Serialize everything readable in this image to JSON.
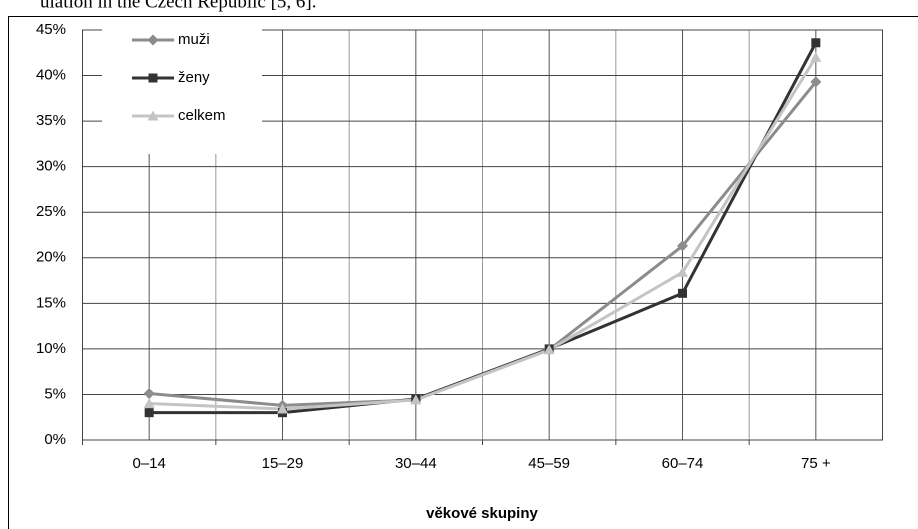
{
  "chart_data": {
    "type": "line",
    "caption": "ulation in the Czech Republic [5, 6].",
    "xlabel": "věkové skupiny",
    "categories": [
      "0–14",
      "15–29",
      "30–44",
      "45–59",
      "60–74",
      "75 +"
    ],
    "series": [
      {
        "name": "muži",
        "color": "#8c8c8c",
        "marker": "diamond",
        "values": [
          5.1,
          3.8,
          4.4,
          9.9,
          21.3,
          39.3
        ]
      },
      {
        "name": "ženy",
        "color": "#333333",
        "marker": "square",
        "values": [
          3.0,
          3.0,
          4.5,
          10.0,
          16.1,
          43.6
        ]
      },
      {
        "name": "celkem",
        "color": "#c4c4c4",
        "marker": "triangle",
        "values": [
          4.0,
          3.4,
          4.4,
          9.9,
          18.4,
          42.0
        ]
      }
    ],
    "ylim": [
      0,
      45
    ],
    "yticks": [
      {
        "value": 0,
        "label": "0%"
      },
      {
        "value": 5,
        "label": "5%"
      },
      {
        "value": 10,
        "label": "10%"
      },
      {
        "value": 15,
        "label": "15%"
      },
      {
        "value": 20,
        "label": "20%"
      },
      {
        "value": 25,
        "label": "25%"
      },
      {
        "value": 30,
        "label": "30%"
      },
      {
        "value": 35,
        "label": "35%"
      },
      {
        "value": 40,
        "label": "40%"
      },
      {
        "value": 45,
        "label": "45%"
      }
    ],
    "grid": true,
    "legend": "upper left"
  }
}
